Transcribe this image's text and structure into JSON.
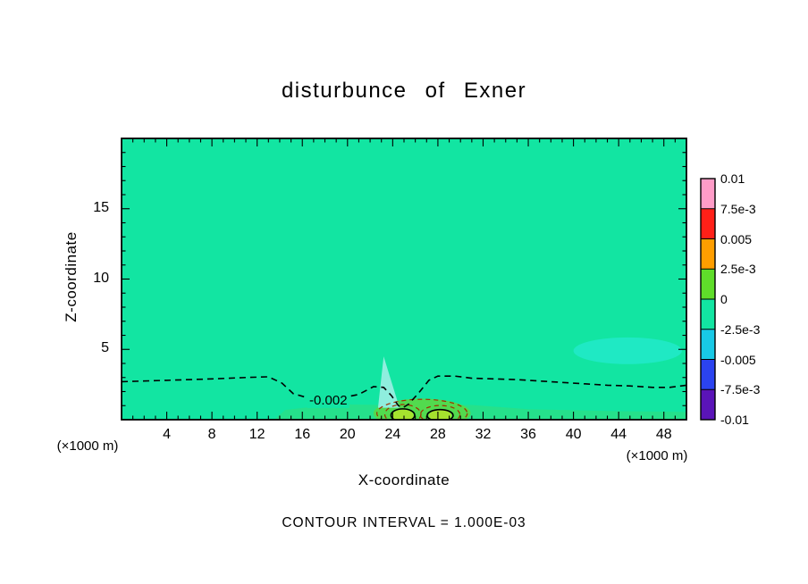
{
  "chart_data": {
    "type": "contour",
    "title": "disturbunce of Exner",
    "xlabel": "X-coordinate",
    "ylabel": "Z-coordinate",
    "unit_left": "(×1000 m)",
    "unit_right": "(×1000 m)",
    "contour_note": "CONTOUR INTERVAL = 1.000E-03",
    "contour_interval": "1.000E-03",
    "xlim": [
      0,
      50
    ],
    "ylim": [
      0,
      20
    ],
    "x_major_ticks": [
      4,
      8,
      12,
      16,
      20,
      24,
      28,
      32,
      36,
      40,
      44,
      48
    ],
    "y_major_ticks": [
      5,
      10,
      15
    ],
    "x_minor_step": 1,
    "y_minor_step": 1,
    "grid": false,
    "background_color": "#12e5a2",
    "colorbar": {
      "position": "right",
      "labels": [
        "0.01",
        "7.5e-3",
        "0.005",
        "2.5e-3",
        "0",
        "-2.5e-3",
        "-0.005",
        "-7.5e-3",
        "-0.01"
      ],
      "colors_top_to_bottom": [
        "#ff9cc8",
        "#ff2018",
        "#ff9e00",
        "#5fdd2a",
        "#12e5a2",
        "#18c9e6",
        "#2b43f0",
        "#5a14b8"
      ]
    },
    "contour_label": {
      "text": "-0.002",
      "x": 18.3,
      "z": 1.35
    },
    "fill_patches": [
      {
        "name": "near-ground-band",
        "type": "polygon",
        "color": "#25e18b",
        "points": [
          [
            13.5,
            0
          ],
          [
            14.5,
            0.7
          ],
          [
            19,
            1.1
          ],
          [
            23,
            1.05
          ],
          [
            31,
            1.05
          ],
          [
            36,
            0.75
          ],
          [
            44,
            0.6
          ],
          [
            50,
            0.55
          ],
          [
            50,
            0
          ]
        ]
      },
      {
        "name": "ground-positive-patch",
        "type": "ellipse",
        "color": "#52da4e",
        "cx": 26.6,
        "cy": 0.45,
        "rx": 4.3,
        "ry": 1.05
      },
      {
        "name": "oval-core-left",
        "type": "ellipse",
        "color": "#a6e22e",
        "cx": 24.9,
        "cy": 0.3,
        "rx": 0.95,
        "ry": 0.42
      },
      {
        "name": "oval-core-right",
        "type": "ellipse",
        "color": "#a6e22e",
        "cx": 28.2,
        "cy": 0.3,
        "rx": 1.0,
        "ry": 0.4
      },
      {
        "name": "cyan-sliver",
        "type": "polygon",
        "color": "#8feede",
        "points": [
          [
            23.2,
            4.5
          ],
          [
            22.7,
            0.85
          ],
          [
            24.6,
            0.85
          ]
        ]
      },
      {
        "name": "right-pale-patch",
        "type": "ellipse",
        "color": "#1fe9c4",
        "cx": 44.8,
        "cy": 4.9,
        "rx": 4.8,
        "ry": 0.95
      }
    ],
    "contour_lines": {
      "main_dashed": {
        "level": -0.002,
        "color": "#000000",
        "points": [
          [
            0,
            2.7
          ],
          [
            4,
            2.8
          ],
          [
            8,
            2.9
          ],
          [
            11,
            3.0
          ],
          [
            13,
            3.05
          ],
          [
            14.2,
            2.6
          ],
          [
            15.2,
            1.85
          ],
          [
            16.5,
            1.55
          ],
          [
            18,
            1.5
          ],
          [
            19.5,
            1.55
          ],
          [
            21,
            1.8
          ],
          [
            22.3,
            2.35
          ],
          [
            23.2,
            2.3
          ],
          [
            23.9,
            1.7
          ],
          [
            24.5,
            1.0
          ],
          [
            24.9,
            0.85
          ],
          [
            25.4,
            1.1
          ],
          [
            26.3,
            1.9
          ],
          [
            27.2,
            2.8
          ],
          [
            28,
            3.1
          ],
          [
            29.5,
            3.1
          ],
          [
            31,
            2.95
          ],
          [
            33,
            2.9
          ],
          [
            35,
            2.85
          ],
          [
            37,
            2.75
          ],
          [
            39,
            2.65
          ],
          [
            41,
            2.55
          ],
          [
            43,
            2.45
          ],
          [
            45,
            2.4
          ],
          [
            47,
            2.3
          ],
          [
            48.5,
            2.3
          ],
          [
            50,
            2.45
          ]
        ]
      },
      "solid_ellipses": [
        {
          "cx": 24.9,
          "cy": 0.32,
          "rx": 1.05,
          "ry": 0.45
        },
        {
          "cx": 28.2,
          "cy": 0.3,
          "rx": 1.15,
          "ry": 0.42
        }
      ],
      "secondary_dashed_ellipses": [
        {
          "cx": 24.9,
          "cy": 0.38,
          "rx": 1.6,
          "ry": 0.7
        },
        {
          "cx": 28.2,
          "cy": 0.36,
          "rx": 1.75,
          "ry": 0.65
        },
        {
          "cx": 26.6,
          "cy": 0.45,
          "rx": 4.0,
          "ry": 1.0
        }
      ],
      "secondary_color": "#a02f00"
    }
  }
}
